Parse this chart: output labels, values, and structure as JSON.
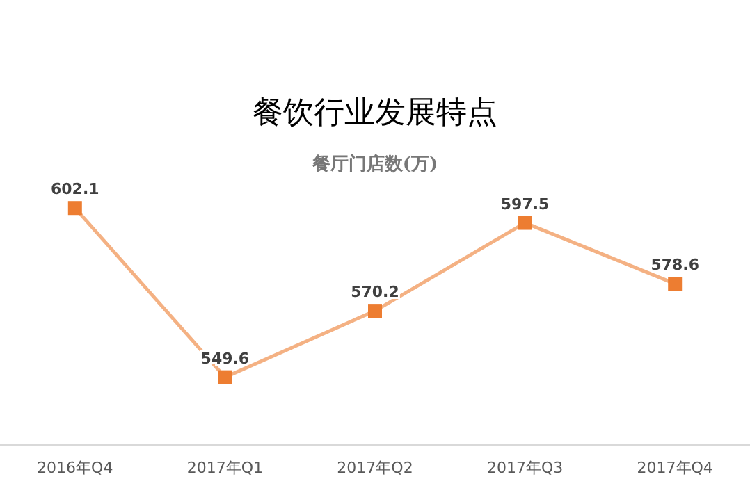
{
  "chart_data": {
    "type": "line",
    "title": "餐饮行业发展特点",
    "subtitle": "餐厅门店数(万)",
    "categories": [
      "2016年Q4",
      "2017年Q1",
      "2017年Q2",
      "2017年Q3",
      "2017年Q4"
    ],
    "series": [
      {
        "color": "#ed7d31",
        "values": [
          602.1,
          549.6,
          570.2,
          597.5,
          578.6
        ]
      }
    ],
    "marker": "square",
    "line_style": "solid",
    "data_labels": true
  }
}
